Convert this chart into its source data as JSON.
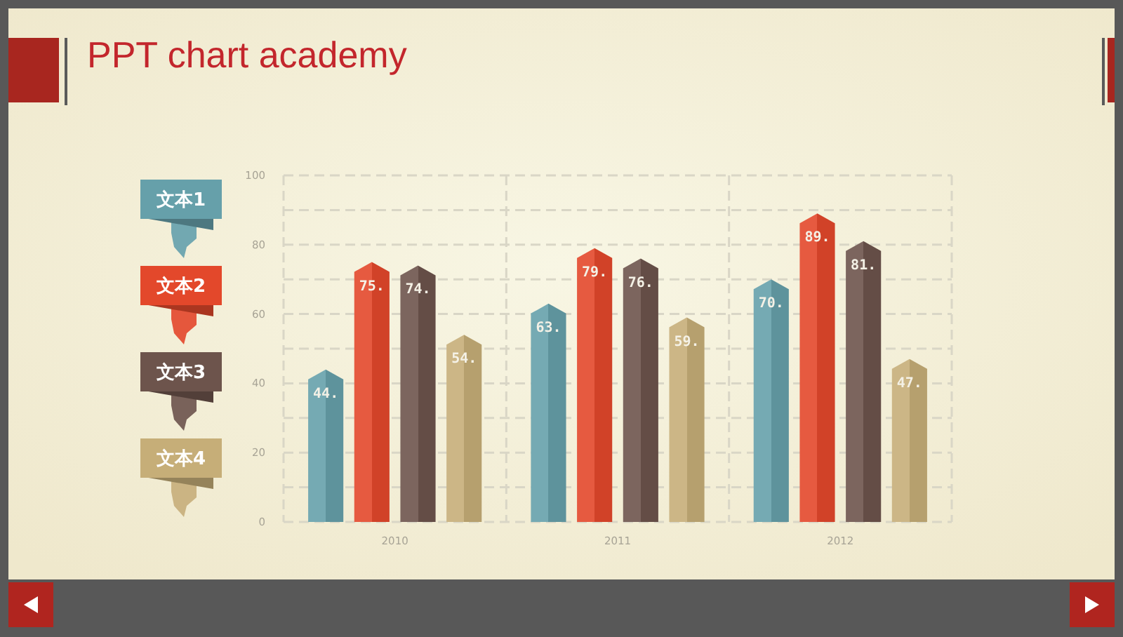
{
  "chart_data": {
    "type": "bar",
    "title": "PPT chart academy",
    "categories": [
      "2010",
      "2011",
      "2012"
    ],
    "series": [
      {
        "name": "文本1",
        "color": "#66a0aa",
        "values": [
          44,
          63,
          70
        ],
        "value_labels": [
          "44.",
          "63.",
          "70."
        ]
      },
      {
        "name": "文本2",
        "color": "#e3482b",
        "values": [
          75,
          79,
          89
        ],
        "value_labels": [
          "75.",
          "79.",
          "89."
        ]
      },
      {
        "name": "文本3",
        "color": "#6d544c",
        "values": [
          74,
          76,
          81
        ],
        "value_labels": [
          "74.",
          "76.",
          "81."
        ]
      },
      {
        "name": "文本4",
        "color": "#c6ae78",
        "values": [
          54,
          59,
          47
        ],
        "value_labels": [
          "54.",
          "59.",
          "47."
        ]
      }
    ],
    "ylim": [
      0,
      100
    ],
    "yticks": [
      0,
      {
        "value": 10,
        "label": null
      },
      20,
      {
        "value": 30,
        "label": null
      },
      40,
      {
        "value": 50,
        "label": null
      },
      60,
      {
        "value": 70,
        "label": null
      },
      80,
      {
        "value": 90,
        "label": null
      },
      100
    ],
    "grid": true,
    "legend": "left"
  }
}
